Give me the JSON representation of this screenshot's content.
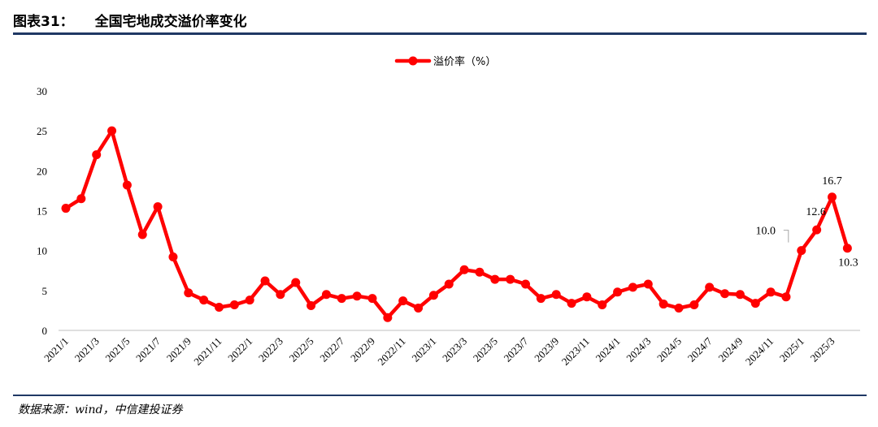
{
  "header": {
    "figure_label": "图表31：",
    "title": "全国宅地成交溢价率变化"
  },
  "footer": {
    "source": "数据来源：wind，中信建投证券"
  },
  "colors": {
    "series": "#ff0000",
    "rule": "#1f3864",
    "axis": "#bfbfbf"
  },
  "chart_data": {
    "type": "line",
    "title": "全国宅地成交溢价率变化",
    "xlabel": "",
    "ylabel": "",
    "ylim": [
      0,
      30
    ],
    "yticks": [
      0,
      5,
      10,
      15,
      20,
      25,
      30
    ],
    "grid": false,
    "legend_position": "top-center",
    "x": [
      "2021/1",
      "2021/2",
      "2021/3",
      "2021/4",
      "2021/5",
      "2021/6",
      "2021/7",
      "2021/8",
      "2021/9",
      "2021/10",
      "2021/11",
      "2021/12",
      "2022/1",
      "2022/2",
      "2022/3",
      "2022/4",
      "2022/5",
      "2022/6",
      "2022/7",
      "2022/8",
      "2022/9",
      "2022/10",
      "2022/11",
      "2022/12",
      "2023/1",
      "2023/2",
      "2023/3",
      "2023/4",
      "2023/5",
      "2023/6",
      "2023/7",
      "2023/8",
      "2023/9",
      "2023/10",
      "2023/11",
      "2023/12",
      "2024/1",
      "2024/2",
      "2024/3",
      "2024/4",
      "2024/5",
      "2024/6",
      "2024/7",
      "2024/8",
      "2024/9",
      "2024/10",
      "2024/11",
      "2024/12",
      "2025/1",
      "2025/2",
      "2025/3",
      "2025/4"
    ],
    "x_tick_labels": [
      "2021/1",
      "2021/3",
      "2021/5",
      "2021/7",
      "2021/9",
      "2021/11",
      "2022/1",
      "2022/3",
      "2022/5",
      "2022/7",
      "2022/9",
      "2022/11",
      "2023/1",
      "2023/3",
      "2023/5",
      "2023/7",
      "2023/9",
      "2023/11",
      "2024/1",
      "2024/3",
      "2024/5",
      "2024/7",
      "2024/9",
      "2024/11",
      "2025/1",
      "2025/3"
    ],
    "series": [
      {
        "name": "溢价率（%）",
        "values": [
          15.3,
          16.5,
          22.0,
          25.0,
          18.2,
          12.0,
          15.5,
          9.2,
          4.7,
          3.8,
          2.9,
          3.2,
          3.8,
          6.2,
          4.5,
          6.0,
          3.1,
          4.5,
          4.0,
          4.3,
          4.0,
          1.6,
          3.7,
          2.8,
          4.4,
          5.8,
          7.6,
          7.3,
          6.4,
          6.4,
          5.8,
          4.0,
          4.5,
          3.4,
          4.2,
          3.2,
          4.8,
          5.4,
          5.8,
          3.3,
          2.8,
          3.2,
          5.4,
          4.6,
          4.5,
          3.4,
          4.8,
          4.2,
          10.0,
          12.6,
          16.7,
          10.3
        ]
      }
    ],
    "data_labels": [
      {
        "index": 48,
        "text": "10.0"
      },
      {
        "index": 49,
        "text": "12.6"
      },
      {
        "index": 50,
        "text": "16.7"
      },
      {
        "index": 51,
        "text": "10.3"
      }
    ]
  }
}
